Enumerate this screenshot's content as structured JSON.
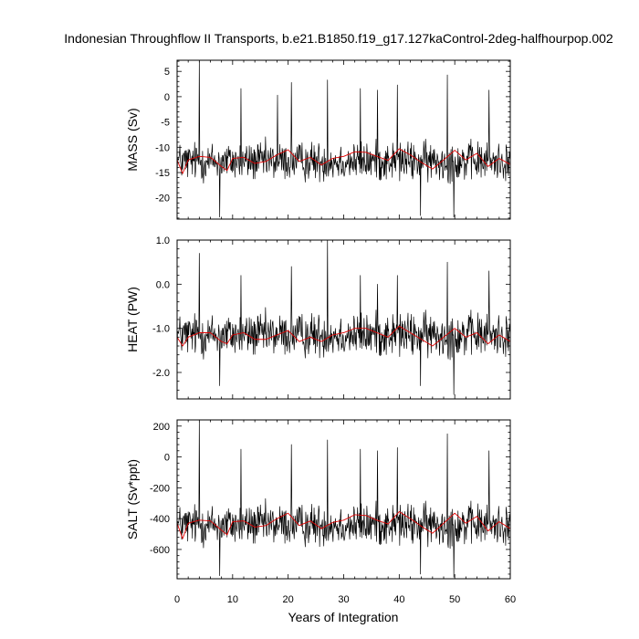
{
  "chart_data": {
    "type": "line",
    "title": "Indonesian Throughflow II Transports, b.e21.B1850.f19_g17.127kaControl-2deg-halfhourpop.002",
    "xlabel": "Years of Integration",
    "xlim": [
      0,
      60
    ],
    "xticks": [
      "0",
      "10",
      "20",
      "30",
      "40",
      "50",
      "60"
    ],
    "series_colors": {
      "monthly": "#000000",
      "smoothed": "#e00000"
    },
    "panels": [
      {
        "id": "mass",
        "ylabel": "MASS (Sv)",
        "ylim": [
          -24.2,
          7.2
        ],
        "yticks": [
          5,
          0,
          -5,
          -10,
          -15,
          -20
        ],
        "ytick_labels": [
          "5",
          "0",
          "-5",
          "-10",
          "-15",
          "-20"
        ],
        "mean": -12.8,
        "amp": 4.3,
        "smoothed": {
          "x": [
            0,
            1,
            2,
            4,
            6,
            8,
            9,
            10,
            12,
            14,
            16,
            18,
            20,
            22,
            24,
            26,
            28,
            30,
            32,
            34,
            36,
            38,
            40,
            42,
            44,
            46,
            48,
            50,
            52,
            54,
            56,
            58,
            60
          ],
          "y": [
            -12.5,
            -15.2,
            -12.5,
            -11.8,
            -12.0,
            -13.8,
            -14.6,
            -12.2,
            -12.0,
            -13.2,
            -12.8,
            -11.5,
            -10.5,
            -12.8,
            -12.0,
            -13.5,
            -12.2,
            -11.8,
            -10.9,
            -11.0,
            -11.8,
            -12.6,
            -10.3,
            -11.5,
            -13.0,
            -14.3,
            -12.5,
            -10.6,
            -12.5,
            -11.2,
            -13.8,
            -12.2,
            -13.4
          ]
        },
        "spikes": [
          {
            "x": 4.0,
            "y": 7.0
          },
          {
            "x": 7.7,
            "y": -23.8
          },
          {
            "x": 11.5,
            "y": 1.6
          },
          {
            "x": 18.1,
            "y": 0.3
          },
          {
            "x": 20.6,
            "y": 2.8
          },
          {
            "x": 27.1,
            "y": 3.3
          },
          {
            "x": 33.0,
            "y": 1.6
          },
          {
            "x": 36.1,
            "y": 1.3
          },
          {
            "x": 39.7,
            "y": 2.3
          },
          {
            "x": 43.8,
            "y": -23.5
          },
          {
            "x": 48.7,
            "y": 4.3
          },
          {
            "x": 49.8,
            "y": -23.8
          },
          {
            "x": 56.2,
            "y": 1.3
          }
        ]
      },
      {
        "id": "heat",
        "ylabel": "HEAT (PW)",
        "ylim": [
          -2.6,
          1.0
        ],
        "yticks": [
          1.0,
          0.0,
          -1.0,
          -2.0
        ],
        "ytick_labels": [
          "1.0",
          "0.0",
          "-1.0",
          "-2.0"
        ],
        "mean": -1.15,
        "amp": 0.55,
        "smoothed": {
          "x": [
            0,
            1,
            2,
            4,
            6,
            8,
            9,
            10,
            12,
            14,
            16,
            18,
            20,
            22,
            24,
            26,
            28,
            30,
            32,
            34,
            36,
            38,
            40,
            42,
            44,
            46,
            48,
            50,
            52,
            54,
            56,
            58,
            60
          ],
          "y": [
            -1.2,
            -1.4,
            -1.2,
            -1.1,
            -1.1,
            -1.3,
            -1.35,
            -1.15,
            -1.1,
            -1.25,
            -1.25,
            -1.15,
            -1.05,
            -1.3,
            -1.2,
            -1.3,
            -1.15,
            -1.1,
            -1.0,
            -1.0,
            -1.1,
            -1.2,
            -0.95,
            -1.1,
            -1.25,
            -1.4,
            -1.2,
            -1.0,
            -1.2,
            -1.1,
            -1.35,
            -1.15,
            -1.3
          ]
        },
        "spikes": [
          {
            "x": 4.0,
            "y": 0.7
          },
          {
            "x": 7.7,
            "y": -2.3
          },
          {
            "x": 11.5,
            "y": 0.2
          },
          {
            "x": 20.6,
            "y": 0.4
          },
          {
            "x": 27.1,
            "y": 1.0
          },
          {
            "x": 33.0,
            "y": 0.2
          },
          {
            "x": 36.1,
            "y": 0.0
          },
          {
            "x": 39.7,
            "y": 0.2
          },
          {
            "x": 43.8,
            "y": -2.3
          },
          {
            "x": 48.7,
            "y": 0.5
          },
          {
            "x": 49.8,
            "y": -2.5
          },
          {
            "x": 56.2,
            "y": 0.3
          }
        ]
      },
      {
        "id": "salt",
        "ylabel": "SALT (Sv*ppt)",
        "ylim": [
          -790,
          240
        ],
        "yticks": [
          200,
          0,
          -200,
          -400,
          -600
        ],
        "ytick_labels": [
          "200",
          "0",
          "-200",
          "-400",
          "-600"
        ],
        "mean": -440,
        "amp": 150,
        "smoothed": {
          "x": [
            0,
            1,
            2,
            4,
            6,
            8,
            9,
            10,
            12,
            14,
            16,
            18,
            20,
            22,
            24,
            26,
            28,
            30,
            32,
            34,
            36,
            38,
            40,
            42,
            44,
            46,
            48,
            50,
            52,
            54,
            56,
            58,
            60
          ],
          "y": [
            -430,
            -530,
            -430,
            -410,
            -415,
            -475,
            -505,
            -420,
            -415,
            -455,
            -445,
            -400,
            -365,
            -445,
            -415,
            -465,
            -425,
            -410,
            -375,
            -380,
            -410,
            -435,
            -355,
            -400,
            -450,
            -495,
            -430,
            -365,
            -430,
            -385,
            -480,
            -420,
            -465
          ]
        },
        "spikes": [
          {
            "x": 4.0,
            "y": 230
          },
          {
            "x": 7.7,
            "y": -770
          },
          {
            "x": 11.5,
            "y": 50
          },
          {
            "x": 20.6,
            "y": 80
          },
          {
            "x": 27.1,
            "y": 110
          },
          {
            "x": 33.0,
            "y": 50
          },
          {
            "x": 36.1,
            "y": 40
          },
          {
            "x": 39.7,
            "y": 60
          },
          {
            "x": 43.8,
            "y": -760
          },
          {
            "x": 48.7,
            "y": 150
          },
          {
            "x": 49.8,
            "y": -780
          },
          {
            "x": 56.2,
            "y": 40
          }
        ]
      }
    ]
  }
}
